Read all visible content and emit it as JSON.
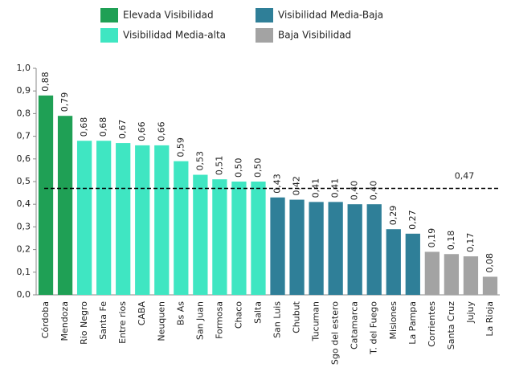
{
  "chart_data": {
    "type": "bar",
    "categories": [
      "Córdoba",
      "Mendoza",
      "Rio Negro",
      "Santa Fe",
      "Entre rios",
      "CABA",
      "Neuquen",
      "Bs As",
      "San Juan",
      "Formosa",
      "Chaco",
      "Salta",
      "San Luis",
      "Chubut",
      "Tucuman",
      "Sgo del estero",
      "Catamarca",
      "T. del Fuego",
      "Misiones",
      "La Pampa",
      "Corrientes",
      "Santa Cruz",
      "Jujuy",
      "La Rioja"
    ],
    "series": [
      {
        "name": "Elevada Visibilidad",
        "color": "#1fa055",
        "values": [
          0.88,
          0.79,
          null,
          null,
          null,
          null,
          null,
          null,
          null,
          null,
          null,
          null,
          null,
          null,
          null,
          null,
          null,
          null,
          null,
          null,
          null,
          null,
          null,
          null
        ],
        "value_labels": [
          "0,88",
          "0,79",
          null,
          null,
          null,
          null,
          null,
          null,
          null,
          null,
          null,
          null,
          null,
          null,
          null,
          null,
          null,
          null,
          null,
          null,
          null,
          null,
          null,
          null
        ]
      },
      {
        "name": "Visibilidad Media-alta",
        "color": "#3fe6c2",
        "values": [
          null,
          null,
          0.68,
          0.68,
          0.67,
          0.66,
          0.66,
          0.59,
          0.53,
          0.51,
          0.5,
          0.5,
          null,
          null,
          null,
          null,
          null,
          null,
          null,
          null,
          null,
          null,
          null,
          null
        ],
        "value_labels": [
          null,
          null,
          "0,68",
          "0,68",
          "0,67",
          "0,66",
          "0,66",
          "0,59",
          "0,53",
          "0,51",
          "0,50",
          "0,50",
          null,
          null,
          null,
          null,
          null,
          null,
          null,
          null,
          null,
          null,
          null,
          null
        ]
      },
      {
        "name": "Visibilidad Media-Baja",
        "color": "#2f7f98",
        "values": [
          null,
          null,
          null,
          null,
          null,
          null,
          null,
          null,
          null,
          null,
          null,
          null,
          0.43,
          0.42,
          0.41,
          0.41,
          0.4,
          0.4,
          0.29,
          0.27,
          null,
          null,
          null,
          null
        ],
        "value_labels": [
          null,
          null,
          null,
          null,
          null,
          null,
          null,
          null,
          null,
          null,
          null,
          null,
          "0,43",
          "0,42",
          "0,41",
          "0,41",
          "0,40",
          "0,40",
          "0,29",
          "0,27",
          null,
          null,
          null,
          null
        ]
      },
      {
        "name": "Baja Visibilidad",
        "color": "#a3a3a3",
        "values": [
          null,
          null,
          null,
          null,
          null,
          null,
          null,
          null,
          null,
          null,
          null,
          null,
          null,
          null,
          null,
          null,
          null,
          null,
          null,
          null,
          0.19,
          0.18,
          0.17,
          0.08
        ],
        "value_labels": [
          null,
          null,
          null,
          null,
          null,
          null,
          null,
          null,
          null,
          null,
          null,
          null,
          null,
          null,
          null,
          null,
          null,
          null,
          null,
          null,
          "0,19",
          "0,18",
          "0,17",
          "0,08"
        ]
      }
    ],
    "reference": {
      "value": 0.47,
      "label": "0,47"
    },
    "ylim": [
      0,
      1
    ],
    "yticks": [
      {
        "value": 0,
        "label": "0,0"
      },
      {
        "value": 0.1,
        "label": "0,1"
      },
      {
        "value": 0.2,
        "label": "0,2"
      },
      {
        "value": 0.3,
        "label": "0,3"
      },
      {
        "value": 0.4,
        "label": "0,4"
      },
      {
        "value": 0.5,
        "label": "0,5"
      },
      {
        "value": 0.6,
        "label": "0,6"
      },
      {
        "value": 0.7,
        "label": "0,7"
      },
      {
        "value": 0.8,
        "label": "0,8"
      },
      {
        "value": 0.9,
        "label": "0,9"
      },
      {
        "value": 1,
        "label": "1,0"
      }
    ]
  }
}
